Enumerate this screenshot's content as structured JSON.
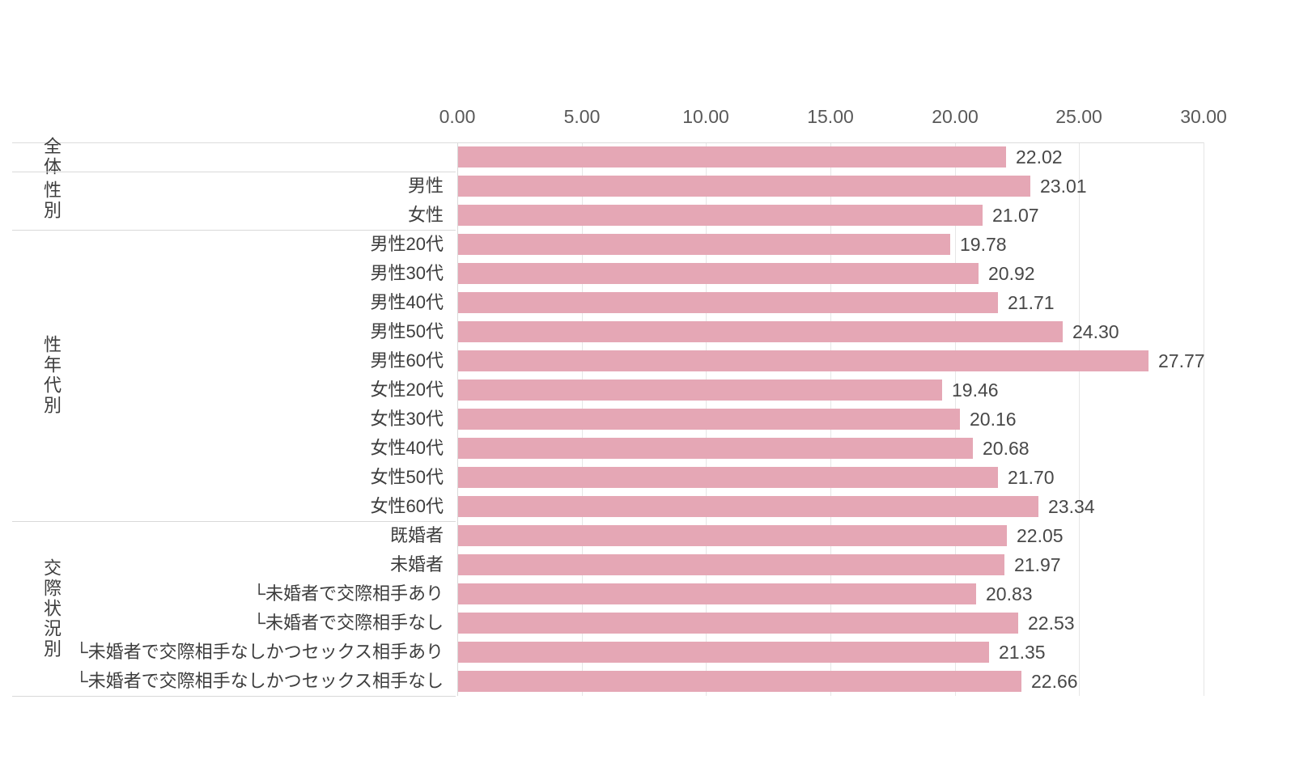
{
  "chart_data": {
    "type": "bar",
    "orientation": "horizontal",
    "title": "",
    "xlabel": "",
    "ylabel": "",
    "x_range": [
      0,
      30
    ],
    "x_tick_step": 5,
    "x_ticks": [
      "0.00",
      "5.00",
      "10.00",
      "15.00",
      "20.00",
      "25.00",
      "30.00"
    ],
    "grid": "vertical-only",
    "bar_color": "#e5a7b5",
    "groups": [
      {
        "label": "全体",
        "rows": [
          {
            "label": "",
            "value": 22.02,
            "value_label": "22.02"
          }
        ]
      },
      {
        "label": "性別",
        "rows": [
          {
            "label": "男性",
            "value": 23.01,
            "value_label": "23.01"
          },
          {
            "label": "女性",
            "value": 21.07,
            "value_label": "21.07"
          }
        ]
      },
      {
        "label": "性年代別",
        "rows": [
          {
            "label": "男性20代",
            "value": 19.78,
            "value_label": "19.78"
          },
          {
            "label": "男性30代",
            "value": 20.92,
            "value_label": "20.92"
          },
          {
            "label": "男性40代",
            "value": 21.71,
            "value_label": "21.71"
          },
          {
            "label": "男性50代",
            "value": 24.3,
            "value_label": "24.30"
          },
          {
            "label": "男性60代",
            "value": 27.77,
            "value_label": "27.77"
          },
          {
            "label": "女性20代",
            "value": 19.46,
            "value_label": "19.46"
          },
          {
            "label": "女性30代",
            "value": 20.16,
            "value_label": "20.16"
          },
          {
            "label": "女性40代",
            "value": 20.68,
            "value_label": "20.68"
          },
          {
            "label": "女性50代",
            "value": 21.7,
            "value_label": "21.70"
          },
          {
            "label": "女性60代",
            "value": 23.34,
            "value_label": "23.34"
          }
        ]
      },
      {
        "label": "交際状況別",
        "rows": [
          {
            "label": "既婚者",
            "value": 22.05,
            "value_label": "22.05"
          },
          {
            "label": "未婚者",
            "value": 21.97,
            "value_label": "21.97"
          },
          {
            "label": "└未婚者で交際相手あり",
            "value": 20.83,
            "value_label": "20.83"
          },
          {
            "label": "└未婚者で交際相手なし",
            "value": 22.53,
            "value_label": "22.53"
          },
          {
            "label": "└未婚者で交際相手なしかつセックス相手あり",
            "value": 21.35,
            "value_label": "21.35"
          },
          {
            "label": "└未婚者で交際相手なしかつセックス相手なし",
            "value": 22.66,
            "value_label": "22.66"
          }
        ]
      }
    ]
  },
  "colors": {
    "bar": "#e5a7b5",
    "gridline": "#e6e6e6",
    "separator": "#d9d9d9",
    "tick_text": "#595959",
    "category_text": "#3d3d3d",
    "value_text": "#484848",
    "background": "#ffffff"
  }
}
